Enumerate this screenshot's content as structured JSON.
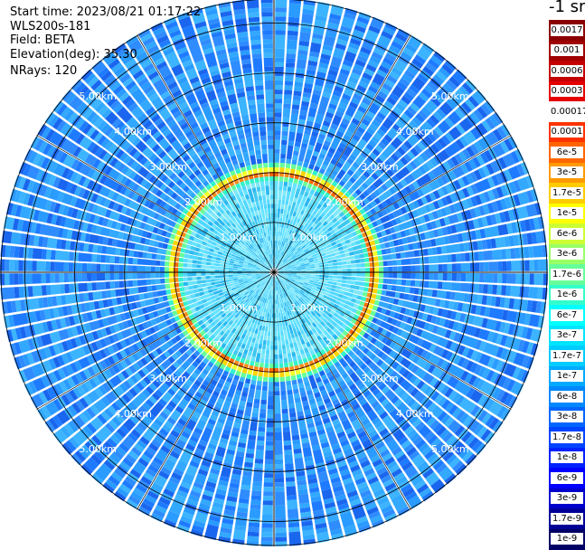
{
  "header": {
    "start_time": "Start time: 2023/08/21 01:17:22",
    "station": "WLS200s-181",
    "field": "Field: BETA",
    "elevation": "Elevation(deg): 35.30",
    "nrays": "NRays: 120"
  },
  "colorbar": {
    "unit_label": "-1 sr",
    "ticks": [
      "0.0017",
      "0.001",
      "0.0006",
      "0.0003",
      "0.00017",
      "0.0001",
      "6e-5",
      "3e-5",
      "1.7e-5",
      "1e-5",
      "6e-6",
      "3e-6",
      "1.7e-6",
      "1e-6",
      "6e-7",
      "3e-7",
      "1.7e-7",
      "1e-7",
      "6e-8",
      "3e-8",
      "1.7e-8",
      "1e-8",
      "6e-9",
      "3e-9",
      "1.7e-9",
      "1e-9"
    ],
    "colors": [
      "#8b0000",
      "#a00000",
      "#c40000",
      "#e60000",
      "#ffffff",
      "#ff3300",
      "#ff6600",
      "#ff9900",
      "#ffcc00",
      "#ffff00",
      "#ccff33",
      "#99ff66",
      "#66ff99",
      "#33ffcc",
      "#00ffff",
      "#00e5ff",
      "#00ccff",
      "#00aaff",
      "#0088ff",
      "#0066ff",
      "#0044ff",
      "#0022ff",
      "#0000ff",
      "#0000cc",
      "#000099",
      "#000066"
    ]
  },
  "chart_data": {
    "type": "heatmap",
    "projection": "polar PPI",
    "field": "BETA",
    "elevation_deg": 35.3,
    "n_rays": 120,
    "range_rings_km": [
      1.0,
      2.0,
      3.0,
      4.0,
      5.0
    ],
    "ring_labels": [
      "1.00km",
      "2.00km",
      "3.00km",
      "4.00km",
      "5.00km"
    ],
    "max_range_km": 5.5,
    "spokes_deg": [
      0,
      30,
      60,
      90,
      120,
      150,
      180,
      210,
      240,
      270,
      300,
      330
    ],
    "feature": {
      "description": "high backscatter ring",
      "range_km": 2.0,
      "value_range": [
        "6e-5",
        "0.0001"
      ]
    },
    "background_value_range": [
      "3e-8",
      "1.7e-7"
    ],
    "grid": true
  }
}
